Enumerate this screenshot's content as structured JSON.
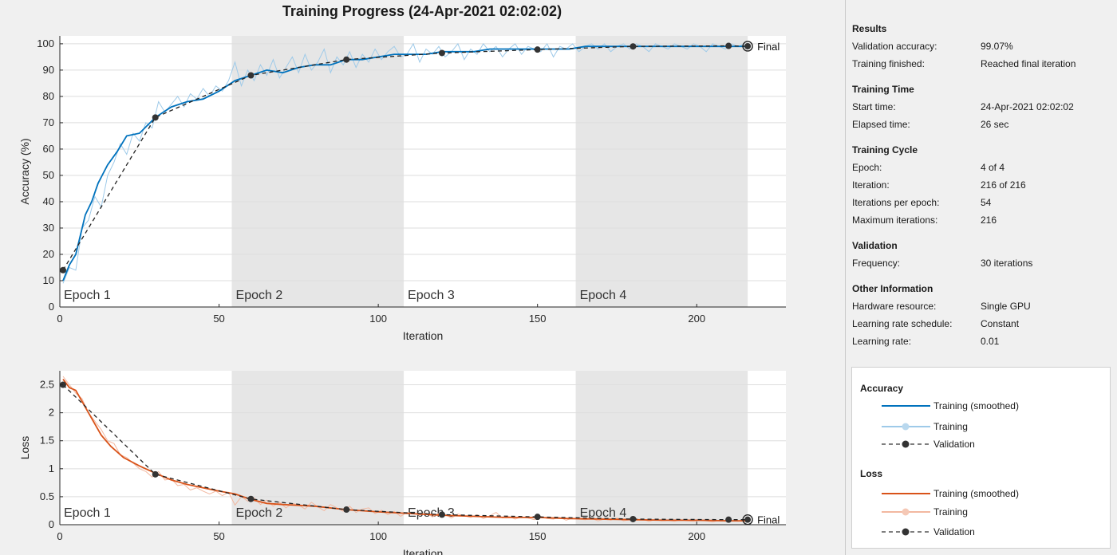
{
  "window": {
    "title": "Training Progress (24-Apr-2021 02:02:02)"
  },
  "colors": {
    "accuracy": "#0072bd",
    "accuracy_raw": "#9ecae9",
    "loss": "#d95319",
    "loss_raw": "#f2b8a0",
    "validation": "#333333",
    "epoch_shade": "#e6e6e6"
  },
  "chart_data": [
    {
      "type": "line",
      "title": "Training Progress (24-Apr-2021 02:02:02)",
      "xlabel": "Iteration",
      "ylabel": "Accuracy (%)",
      "xlim": [
        0,
        228
      ],
      "ylim": [
        0,
        103
      ],
      "xticks": [
        0,
        50,
        100,
        150,
        200
      ],
      "yticks": [
        0,
        10,
        20,
        30,
        40,
        50,
        60,
        70,
        80,
        90,
        100
      ],
      "grid": true,
      "epochs": [
        {
          "label": "Epoch 1",
          "start": 0,
          "end": 54,
          "shaded": false
        },
        {
          "label": "Epoch 2",
          "start": 54,
          "end": 108,
          "shaded": true
        },
        {
          "label": "Epoch 3",
          "start": 108,
          "end": 162,
          "shaded": false
        },
        {
          "label": "Epoch 4",
          "start": 162,
          "end": 216,
          "shaded": true
        }
      ],
      "final_label": "Final",
      "series": [
        {
          "name": "Training (smoothed)",
          "x": [
            1,
            3,
            5,
            8,
            10,
            12,
            15,
            18,
            21,
            25,
            30,
            35,
            40,
            45,
            50,
            55,
            60,
            65,
            70,
            75,
            80,
            85,
            90,
            95,
            100,
            105,
            110,
            115,
            120,
            125,
            130,
            135,
            140,
            145,
            150,
            155,
            160,
            165,
            170,
            175,
            180,
            185,
            190,
            195,
            200,
            205,
            210,
            216
          ],
          "values": [
            10,
            16,
            20,
            35,
            40,
            47,
            54,
            59,
            65,
            66,
            72,
            76,
            78,
            79,
            82,
            86,
            88,
            90,
            89,
            91,
            92,
            92,
            94,
            94,
            95,
            96,
            96,
            96,
            97,
            97,
            97,
            98,
            98,
            98,
            98,
            98,
            98,
            99,
            99,
            99,
            99,
            99,
            99,
            99,
            99,
            99,
            99,
            99
          ]
        },
        {
          "name": "Training",
          "x": [
            1,
            3,
            5,
            7,
            9,
            11,
            13,
            15,
            17,
            19,
            21,
            23,
            25,
            27,
            29,
            31,
            33,
            35,
            37,
            39,
            41,
            43,
            45,
            47,
            49,
            51,
            53,
            55,
            57,
            59,
            61,
            63,
            65,
            67,
            69,
            71,
            73,
            75,
            77,
            79,
            81,
            83,
            85,
            87,
            89,
            91,
            93,
            95,
            97,
            99,
            101,
            103,
            105,
            107,
            109,
            111,
            113,
            115,
            117,
            119,
            121,
            123,
            125,
            127,
            129,
            131,
            133,
            135,
            137,
            139,
            141,
            143,
            145,
            147,
            149,
            151,
            153,
            155,
            157,
            159,
            161,
            163,
            165,
            167,
            169,
            171,
            173,
            175,
            177,
            179,
            181,
            183,
            185,
            187,
            189,
            191,
            193,
            195,
            197,
            199,
            201,
            203,
            205,
            207,
            209,
            211,
            213,
            215
          ],
          "values": [
            9,
            15,
            14,
            30,
            33,
            42,
            38,
            50,
            55,
            62,
            58,
            66,
            63,
            70,
            68,
            78,
            74,
            77,
            80,
            76,
            81,
            79,
            83,
            80,
            84,
            82,
            86,
            93,
            84,
            90,
            86,
            92,
            88,
            94,
            87,
            91,
            95,
            89,
            96,
            90,
            93,
            98,
            89,
            95,
            92,
            97,
            91,
            96,
            93,
            98,
            94,
            97,
            99,
            95,
            96,
            100,
            93,
            98,
            96,
            99,
            95,
            97,
            100,
            94,
            98,
            96,
            100,
            97,
            99,
            95,
            98,
            100,
            96,
            99,
            98,
            97,
            100,
            95,
            99,
            98,
            100,
            97,
            99,
            100,
            98,
            100,
            97,
            99,
            100,
            98,
            100,
            99,
            97,
            100,
            99,
            98,
            100,
            99,
            98,
            100,
            99,
            97,
            100,
            99,
            98,
            100,
            99,
            100
          ]
        },
        {
          "name": "Validation",
          "x": [
            1,
            30,
            60,
            90,
            120,
            150,
            180,
            210,
            216
          ],
          "values": [
            14,
            72,
            88,
            94,
            96.5,
            97.8,
            99,
            99.2,
            99.07
          ]
        }
      ]
    },
    {
      "type": "line",
      "xlabel": "Iteration",
      "ylabel": "Loss",
      "xlim": [
        0,
        228
      ],
      "ylim": [
        0,
        2.75
      ],
      "xticks": [
        0,
        50,
        100,
        150,
        200
      ],
      "yticks": [
        0,
        0.5,
        1,
        1.5,
        2,
        2.5
      ],
      "grid": true,
      "epochs": [
        {
          "label": "Epoch 1",
          "start": 0,
          "end": 54,
          "shaded": false
        },
        {
          "label": "Epoch 2",
          "start": 54,
          "end": 108,
          "shaded": true
        },
        {
          "label": "Epoch 3",
          "start": 108,
          "end": 162,
          "shaded": false
        },
        {
          "label": "Epoch 4",
          "start": 162,
          "end": 216,
          "shaded": true
        }
      ],
      "final_label": "Final",
      "series": [
        {
          "name": "Training (smoothed)",
          "x": [
            1,
            3,
            5,
            7,
            10,
            13,
            16,
            20,
            25,
            30,
            35,
            40,
            45,
            50,
            55,
            60,
            65,
            70,
            80,
            90,
            100,
            110,
            120,
            130,
            140,
            150,
            160,
            170,
            180,
            190,
            200,
            210,
            216
          ],
          "values": [
            2.6,
            2.45,
            2.4,
            2.2,
            1.9,
            1.6,
            1.4,
            1.2,
            1.05,
            0.92,
            0.8,
            0.72,
            0.66,
            0.6,
            0.55,
            0.45,
            0.38,
            0.36,
            0.33,
            0.27,
            0.23,
            0.2,
            0.17,
            0.15,
            0.13,
            0.13,
            0.11,
            0.1,
            0.09,
            0.08,
            0.08,
            0.07,
            0.07
          ]
        },
        {
          "name": "Training",
          "x": [
            1,
            3,
            5,
            7,
            9,
            11,
            13,
            15,
            17,
            19,
            21,
            23,
            25,
            27,
            29,
            31,
            33,
            35,
            37,
            39,
            41,
            43,
            45,
            47,
            49,
            51,
            53,
            55,
            57,
            59,
            61,
            63,
            65,
            67,
            69,
            71,
            73,
            75,
            77,
            79,
            81,
            83,
            85,
            87,
            89,
            91,
            93,
            95,
            97,
            99,
            101,
            103,
            105,
            107,
            109,
            111,
            113,
            115,
            117,
            119,
            121,
            123,
            125,
            127,
            129,
            131,
            133,
            135,
            137,
            139,
            141,
            143,
            145,
            147,
            149,
            151,
            153,
            155,
            157,
            159,
            161,
            163,
            165,
            167,
            169,
            171,
            173,
            175,
            177,
            179,
            181,
            183,
            185,
            187,
            189,
            191,
            193,
            195,
            197,
            199,
            201,
            203,
            205,
            207,
            209,
            211,
            213,
            215
          ],
          "values": [
            2.65,
            2.5,
            2.35,
            2.25,
            2.0,
            1.85,
            1.7,
            1.5,
            1.45,
            1.25,
            1.2,
            1.1,
            1.0,
            0.95,
            0.85,
            0.95,
            0.8,
            0.82,
            0.7,
            0.72,
            0.62,
            0.66,
            0.6,
            0.55,
            0.6,
            0.52,
            0.58,
            0.35,
            0.5,
            0.42,
            0.48,
            0.36,
            0.44,
            0.33,
            0.4,
            0.3,
            0.38,
            0.35,
            0.28,
            0.4,
            0.32,
            0.25,
            0.36,
            0.3,
            0.24,
            0.33,
            0.22,
            0.28,
            0.3,
            0.2,
            0.26,
            0.18,
            0.24,
            0.15,
            0.22,
            0.2,
            0.17,
            0.21,
            0.14,
            0.2,
            0.18,
            0.12,
            0.19,
            0.16,
            0.13,
            0.18,
            0.11,
            0.16,
            0.22,
            0.12,
            0.15,
            0.1,
            0.14,
            0.12,
            0.09,
            0.15,
            0.11,
            0.1,
            0.13,
            0.08,
            0.12,
            0.1,
            0.09,
            0.11,
            0.07,
            0.1,
            0.08,
            0.12,
            0.07,
            0.09,
            0.08,
            0.1,
            0.06,
            0.09,
            0.07,
            0.08,
            0.06,
            0.09,
            0.07,
            0.06,
            0.08,
            0.07,
            0.05,
            0.08,
            0.06,
            0.07,
            0.06,
            0.07
          ]
        },
        {
          "name": "Validation",
          "x": [
            1,
            30,
            60,
            90,
            120,
            150,
            180,
            210,
            216
          ],
          "values": [
            2.5,
            0.9,
            0.46,
            0.27,
            0.18,
            0.14,
            0.1,
            0.09,
            0.09
          ]
        }
      ]
    }
  ],
  "info": {
    "sections": [
      {
        "title": "Results",
        "rows": [
          {
            "key": "Validation accuracy:",
            "value": "99.07%"
          },
          {
            "key": "Training finished:",
            "value": "Reached final iteration"
          }
        ]
      },
      {
        "title": "Training Time",
        "rows": [
          {
            "key": "Start time:",
            "value": "24-Apr-2021 02:02:02"
          },
          {
            "key": "Elapsed time:",
            "value": "26 sec"
          }
        ]
      },
      {
        "title": "Training Cycle",
        "rows": [
          {
            "key": "Epoch:",
            "value": "4 of 4"
          },
          {
            "key": "Iteration:",
            "value": "216 of 216"
          },
          {
            "key": "Iterations per epoch:",
            "value": "54"
          },
          {
            "key": "Maximum iterations:",
            "value": "216"
          }
        ]
      },
      {
        "title": "Validation",
        "rows": [
          {
            "key": "Frequency:",
            "value": "30 iterations"
          }
        ]
      },
      {
        "title": "Other Information",
        "rows": [
          {
            "key": "Hardware resource:",
            "value": "Single GPU"
          },
          {
            "key": "Learning rate schedule:",
            "value": "Constant"
          },
          {
            "key": "Learning rate:",
            "value": "0.01"
          }
        ]
      }
    ]
  },
  "legend": {
    "accuracy_title": "Accuracy",
    "loss_title": "Loss",
    "accuracy_smoothed": "Training (smoothed)",
    "accuracy_training": "Training",
    "accuracy_validation": "Validation",
    "loss_smoothed": "Training (smoothed)",
    "loss_training": "Training",
    "loss_validation": "Validation"
  }
}
